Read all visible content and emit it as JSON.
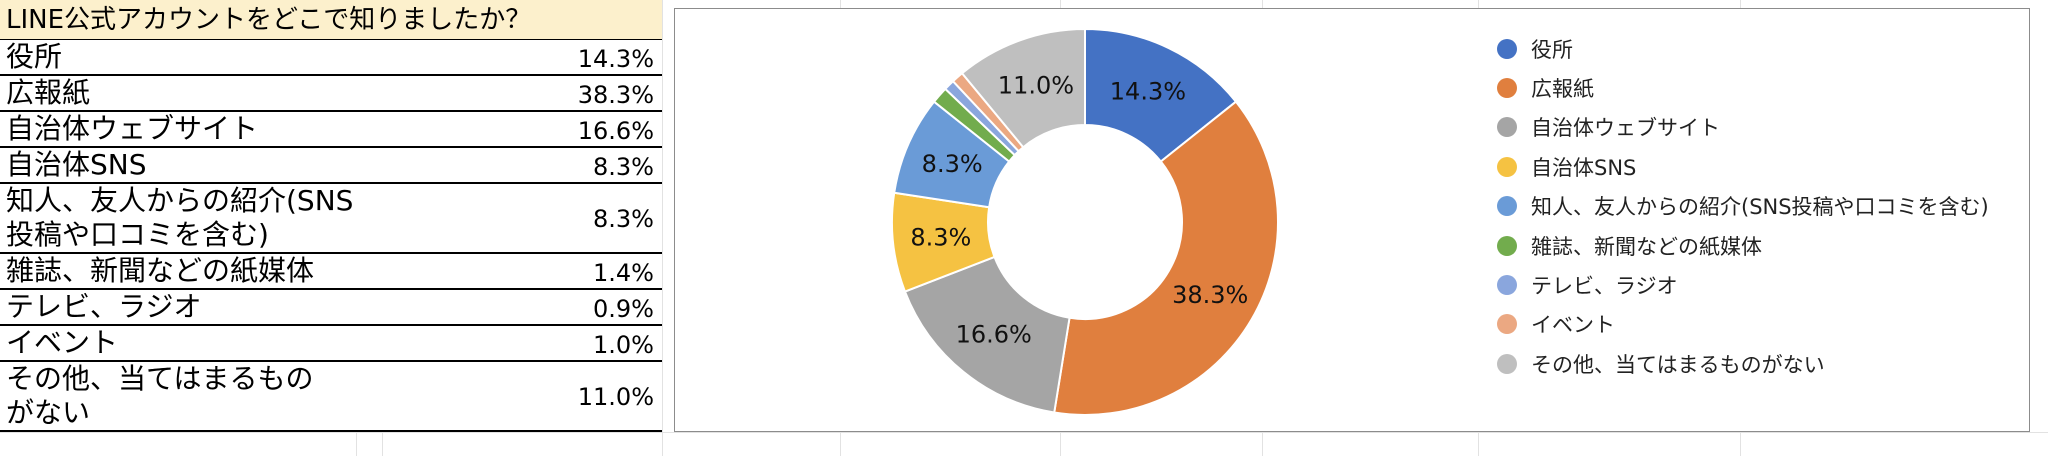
{
  "table": {
    "title": "LINE公式アカウントをどこで知りましたか？",
    "rows": [
      {
        "label": "役所",
        "value": "14.3%"
      },
      {
        "label": "広報紙",
        "value": "38.3%"
      },
      {
        "label": "自治体ウェブサイト",
        "value": "16.6%"
      },
      {
        "label": "自治体SNS",
        "value": "8.3%"
      },
      {
        "label": "知人、友人からの紹介(SNS\n投稿や口コミを含む)",
        "value": "8.3%"
      },
      {
        "label": "雑誌、新聞などの紙媒体",
        "value": "1.4%"
      },
      {
        "label": "テレビ、ラジオ",
        "value": "0.9%"
      },
      {
        "label": "イベント",
        "value": "1.0%"
      },
      {
        "label": "その他、当てはまるもの\nがない",
        "value": "11.0%"
      }
    ]
  },
  "chart_data": {
    "type": "pie",
    "style": "donut",
    "legend_position": "right",
    "categories": [
      "役所",
      "広報紙",
      "自治体ウェブサイト",
      "自治体SNS",
      "知人、友人からの紹介(SNS投稿や口コミを含む)",
      "雑誌、新聞などの紙媒体",
      "テレビ、ラジオ",
      "イベント",
      "その他、当てはまるものがない"
    ],
    "values": [
      14.3,
      38.3,
      16.6,
      8.3,
      8.3,
      1.4,
      0.9,
      1.0,
      11.0
    ],
    "data_labels": [
      "14.3%",
      "38.3%",
      "16.6%",
      "8.3%",
      "8.3%",
      "",
      "",
      "",
      "11.0%"
    ],
    "colors": [
      "#4472c4",
      "#e07f3e",
      "#a5a5a5",
      "#f5c242",
      "#6a9bd7",
      "#72ac4d",
      "#8aa6dd",
      "#eba882",
      "#bfbfbf"
    ]
  }
}
